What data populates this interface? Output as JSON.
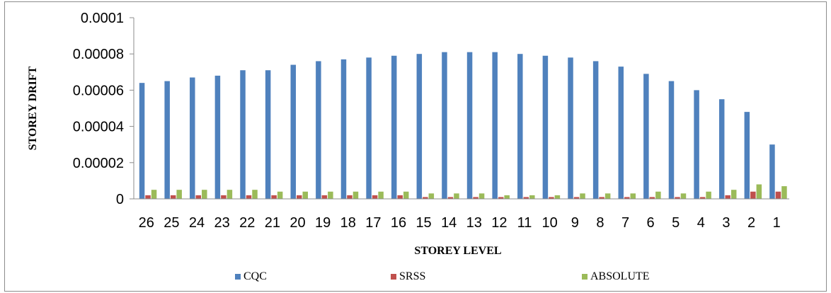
{
  "chart_data": {
    "type": "bar",
    "title": "",
    "xlabel": "STOREY LEVEL",
    "ylabel": "STOREY DRIFT",
    "ylim": [
      0,
      0.0001
    ],
    "yticks": [
      "0",
      "0.00002",
      "0.00004",
      "0.00006",
      "0.00008",
      "0.0001"
    ],
    "ytick_values": [
      0,
      2e-05,
      4e-05,
      6e-05,
      8e-05,
      0.0001
    ],
    "grid": false,
    "legend_position": "bottom",
    "categories": [
      "26",
      "25",
      "24",
      "23",
      "22",
      "21",
      "20",
      "19",
      "18",
      "17",
      "16",
      "15",
      "14",
      "13",
      "12",
      "11",
      "10",
      "9",
      "8",
      "7",
      "6",
      "5",
      "4",
      "3",
      "2",
      "1"
    ],
    "series": [
      {
        "name": "CQC",
        "color": "#4f81bd",
        "values": [
          6.4e-05,
          6.5e-05,
          6.7e-05,
          6.8e-05,
          7.1e-05,
          7.1e-05,
          7.4e-05,
          7.6e-05,
          7.7e-05,
          7.8e-05,
          7.9e-05,
          8e-05,
          8.1e-05,
          8.1e-05,
          8.1e-05,
          8e-05,
          7.9e-05,
          7.8e-05,
          7.6e-05,
          7.3e-05,
          6.9e-05,
          6.5e-05,
          6e-05,
          5.5e-05,
          4.8e-05,
          3e-05
        ]
      },
      {
        "name": "SRSS",
        "color": "#c0504d",
        "values": [
          2e-06,
          2e-06,
          2e-06,
          2e-06,
          2e-06,
          2e-06,
          2e-06,
          2e-06,
          2e-06,
          2e-06,
          2e-06,
          1e-06,
          1e-06,
          1e-06,
          1e-06,
          1e-06,
          1e-06,
          1e-06,
          1e-06,
          1e-06,
          1e-06,
          1e-06,
          1e-06,
          2e-06,
          4e-06,
          4e-06
        ]
      },
      {
        "name": "ABSOLUTE",
        "color": "#9bbb59",
        "values": [
          5e-06,
          5e-06,
          5e-06,
          5e-06,
          5e-06,
          4e-06,
          4e-06,
          4e-06,
          4e-06,
          4e-06,
          4e-06,
          3e-06,
          3e-06,
          3e-06,
          2e-06,
          2e-06,
          2e-06,
          3e-06,
          3e-06,
          3e-06,
          4e-06,
          3e-06,
          4e-06,
          5e-06,
          8e-06,
          7e-06
        ]
      }
    ]
  }
}
